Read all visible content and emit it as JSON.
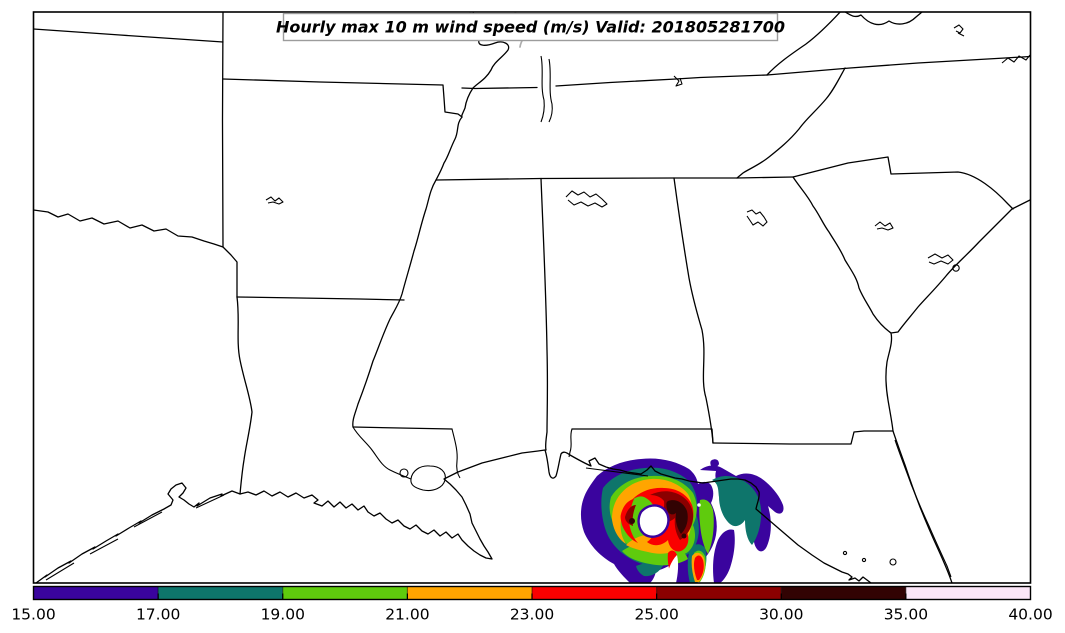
{
  "figure": {
    "background_color": "#ffffff",
    "frame_color": "#000000",
    "map_line_color": "#000000",
    "river_gray_color": "#adadad",
    "title_box_border_color": "#9c9c9c"
  },
  "chart_data": {
    "type": "heatmap",
    "subtype": "filled-contour weather map",
    "title": "Hourly max 10 m wind speed (m/s) Valid: 201805281700",
    "variable": "Hourly max 10 m wind speed",
    "units": "m/s",
    "valid_time": "201805281700",
    "basemap": "Southeastern United States state outlines, Gulf of Mexico and Atlantic coastlines",
    "grid": "off",
    "colorbar": {
      "orientation": "horizontal",
      "position": "bottom",
      "spacing": "uniform",
      "boundaries": [
        15,
        17,
        19,
        21,
        23,
        25,
        30,
        35,
        40
      ],
      "tick_labels": [
        "15.00",
        "17.00",
        "19.00",
        "21.00",
        "23.00",
        "25.00",
        "30.00",
        "35.00",
        "40.00"
      ],
      "segment_colors": [
        "#3A049E",
        "#0E756B",
        "#5FCB0D",
        "#FFA500",
        "#FA0000",
        "#8B0000",
        "#320303",
        "#FBE5F7"
      ]
    },
    "storm": {
      "feature": "tropical-cyclone wind swath with calm white eye",
      "location": "northeastern Gulf of Mexico, south of the Florida panhandle big bend",
      "eye_fill": "#FFFFFF",
      "peak_band_m_s": "30-35",
      "contour_levels_m_s": [
        15,
        17,
        19,
        21,
        23,
        25,
        30,
        35
      ]
    }
  }
}
